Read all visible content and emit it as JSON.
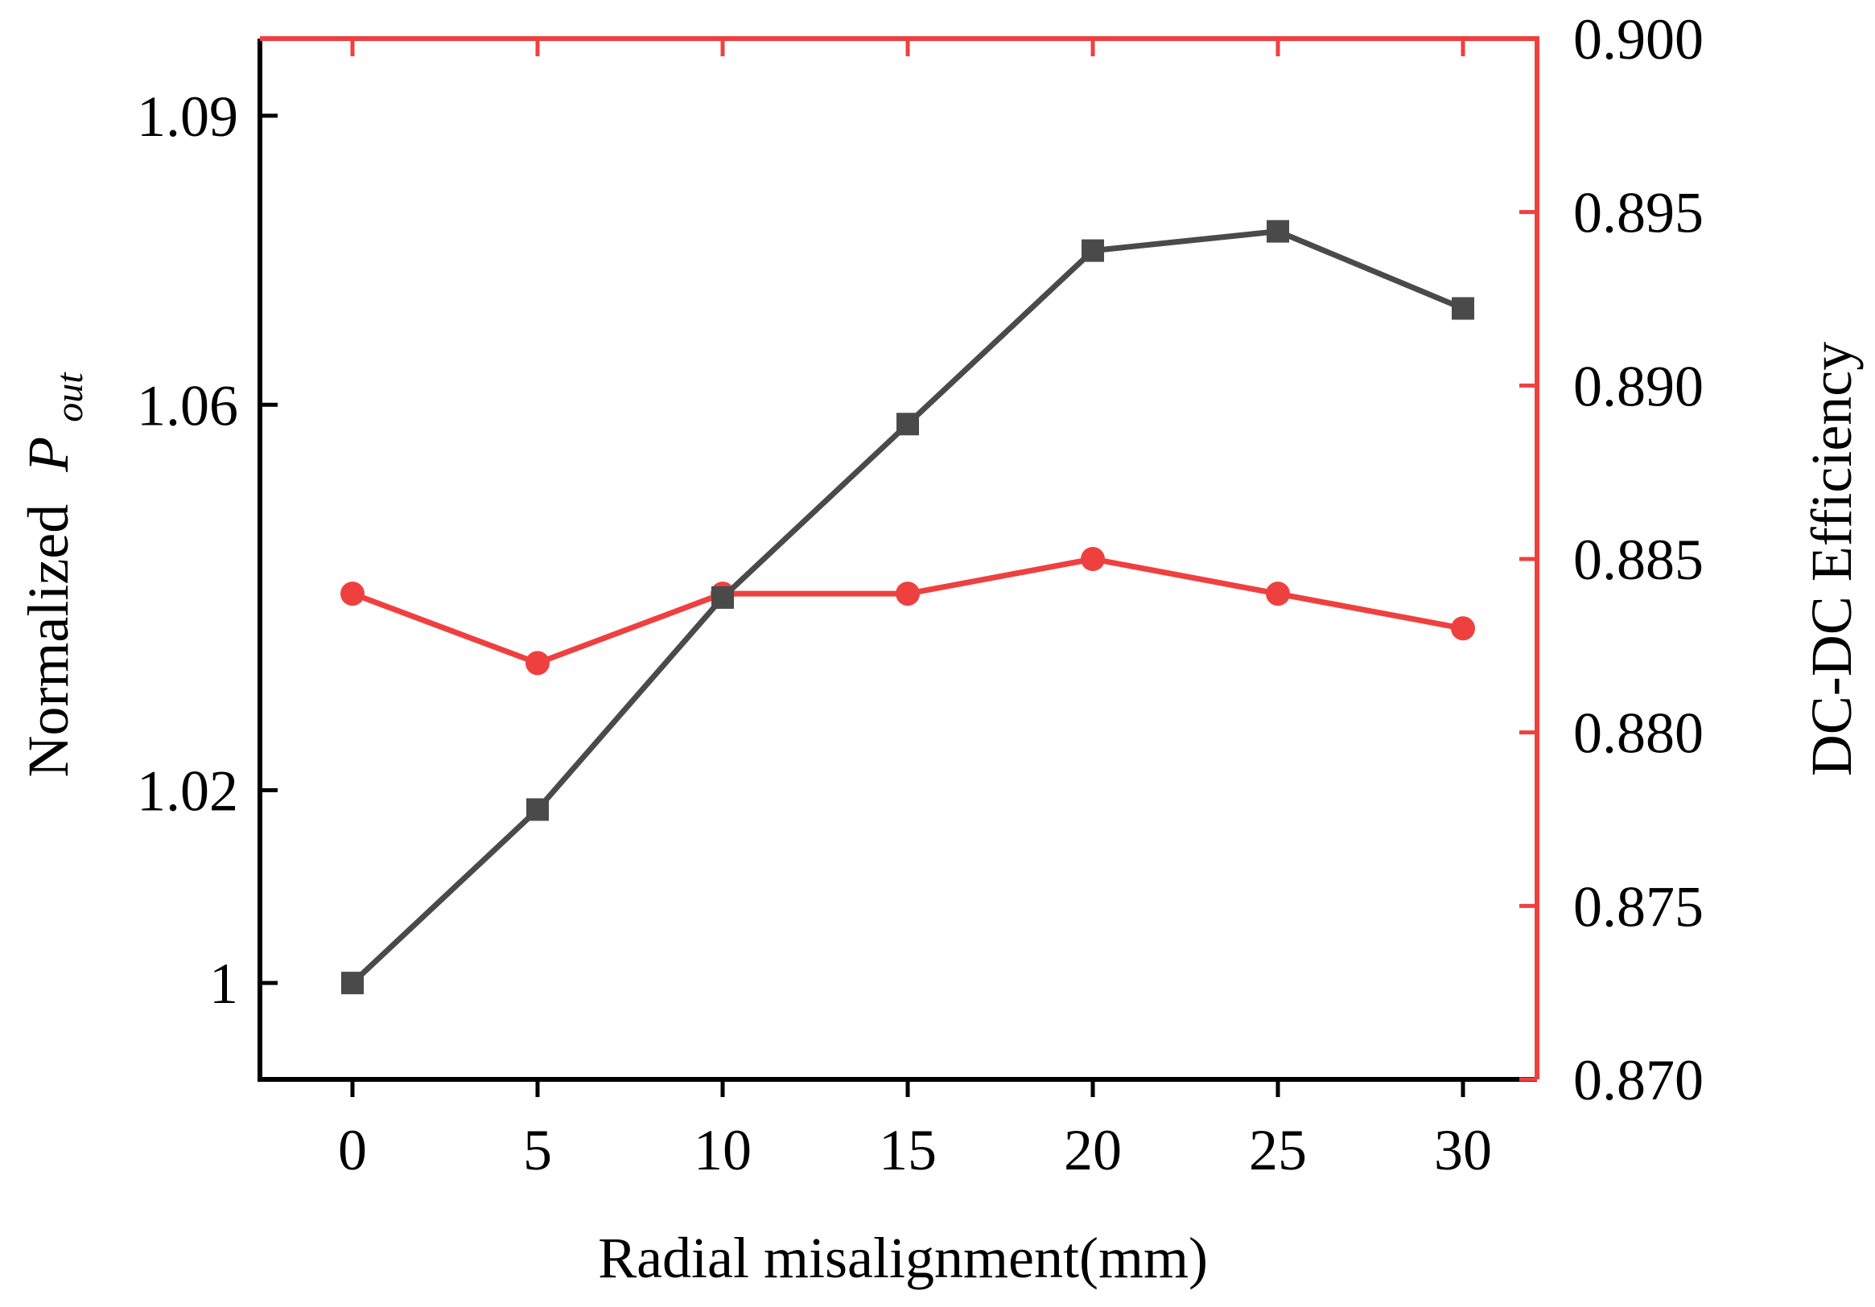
{
  "chart_data": {
    "type": "line",
    "xlabel": "Radial misalignment(mm)",
    "ylabel": {
      "prefix": "Normalized",
      "symbol": "P",
      "subscript": "out"
    },
    "y2label": "DC-DC Efficiency",
    "x": [
      0,
      5,
      10,
      15,
      20,
      25,
      30
    ],
    "xlim": [
      -2.5,
      32
    ],
    "ylim": [
      0.99,
      1.098
    ],
    "y2lim": [
      0.87,
      0.9
    ],
    "x_ticks": [
      "0",
      "5",
      "10",
      "15",
      "20",
      "25",
      "30"
    ],
    "y_ticks": [
      {
        "value": 1.0,
        "label": "1"
      },
      {
        "value": 1.02,
        "label": "1.02"
      },
      {
        "value": 1.06,
        "label": "1.06"
      },
      {
        "value": 1.09,
        "label": "1.09"
      }
    ],
    "y2_ticks": [
      {
        "value": 0.87,
        "label": "0.870"
      },
      {
        "value": 0.875,
        "label": "0.875"
      },
      {
        "value": 0.88,
        "label": "0.880"
      },
      {
        "value": 0.885,
        "label": "0.885"
      },
      {
        "value": 0.89,
        "label": "0.890"
      },
      {
        "value": 0.895,
        "label": "0.895"
      },
      {
        "value": 0.9,
        "label": "0.900"
      }
    ],
    "series": [
      {
        "name": "Normalized Pout",
        "axis": "left",
        "marker": "square",
        "color": "#4a4a4a",
        "values": [
          1.0,
          1.018,
          1.04,
          1.058,
          1.076,
          1.078,
          1.07
        ]
      },
      {
        "name": "DC-DC Efficiency",
        "axis": "right",
        "marker": "circle",
        "color": "#ef4040",
        "values": [
          0.884,
          0.882,
          0.884,
          0.884,
          0.885,
          0.884,
          0.883
        ]
      }
    ],
    "colors": {
      "left_axis": "#000000",
      "right_axis": "#ef4040"
    }
  }
}
